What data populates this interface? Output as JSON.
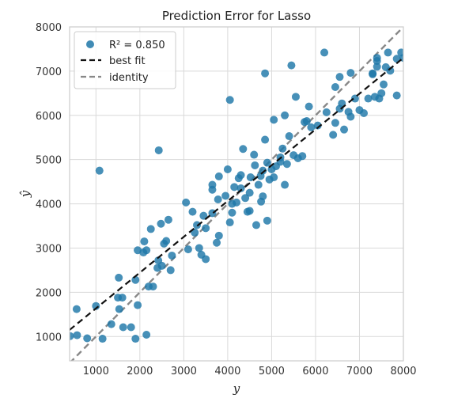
{
  "chart_data": {
    "type": "scatter",
    "title": "Prediction Error for Lasso",
    "xlabel": "y",
    "ylabel": "ŷ",
    "xlim": [
      400,
      8000
    ],
    "ylim": [
      450,
      8000
    ],
    "xticks": [
      "1000",
      "2000",
      "3000",
      "4000",
      "5000",
      "6000",
      "7000",
      "8000"
    ],
    "yticks": [
      "1000",
      "2000",
      "3000",
      "4000",
      "5000",
      "6000",
      "7000",
      "8000"
    ],
    "grid": true,
    "legend_position": "top-left",
    "legend": {
      "points_label": "R² = 0.850",
      "best_fit_label": "best fit",
      "identity_label": "identity"
    },
    "colors": {
      "points": "#1f77a8",
      "best_fit": "#111111",
      "identity": "#888888",
      "grid": "#d9d9d9"
    },
    "best_fit": {
      "x": [
        400,
        8000
      ],
      "y": [
        1150,
        7300
      ]
    },
    "identity": {
      "x": [
        400,
        8000
      ],
      "y": [
        400,
        8000
      ]
    },
    "points": [
      [
        410,
        1010
      ],
      [
        560,
        1620
      ],
      [
        570,
        1030
      ],
      [
        800,
        960
      ],
      [
        1000,
        1690
      ],
      [
        1080,
        4750
      ],
      [
        1150,
        950
      ],
      [
        1350,
        1280
      ],
      [
        1500,
        1880
      ],
      [
        1530,
        1620
      ],
      [
        1520,
        2330
      ],
      [
        1600,
        1880
      ],
      [
        1620,
        1210
      ],
      [
        1800,
        1210
      ],
      [
        1900,
        950
      ],
      [
        1900,
        2280
      ],
      [
        1950,
        1710
      ],
      [
        1950,
        2950
      ],
      [
        2080,
        2900
      ],
      [
        2100,
        3150
      ],
      [
        2150,
        2950
      ],
      [
        2150,
        1040
      ],
      [
        2200,
        2130
      ],
      [
        2250,
        3430
      ],
      [
        2300,
        2130
      ],
      [
        2400,
        2550
      ],
      [
        2430,
        5210
      ],
      [
        2420,
        2720
      ],
      [
        2480,
        3550
      ],
      [
        2500,
        2600
      ],
      [
        2550,
        3100
      ],
      [
        2600,
        3160
      ],
      [
        2650,
        3640
      ],
      [
        2700,
        2500
      ],
      [
        2730,
        2830
      ],
      [
        3050,
        4030
      ],
      [
        3100,
        2970
      ],
      [
        3200,
        3820
      ],
      [
        3250,
        3350
      ],
      [
        3300,
        3520
      ],
      [
        3350,
        3000
      ],
      [
        3400,
        2850
      ],
      [
        3450,
        3730
      ],
      [
        3500,
        3450
      ],
      [
        3500,
        2750
      ],
      [
        3650,
        4430
      ],
      [
        3650,
        4320
      ],
      [
        3650,
        3790
      ],
      [
        3750,
        3120
      ],
      [
        3780,
        4100
      ],
      [
        3800,
        4620
      ],
      [
        3800,
        3280
      ],
      [
        3950,
        4180
      ],
      [
        4000,
        4780
      ],
      [
        4050,
        3580
      ],
      [
        4050,
        6350
      ],
      [
        4100,
        3800
      ],
      [
        4100,
        4000
      ],
      [
        4150,
        4380
      ],
      [
        4200,
        4030
      ],
      [
        4250,
        4580
      ],
      [
        4300,
        4650
      ],
      [
        4300,
        4350
      ],
      [
        4350,
        5240
      ],
      [
        4400,
        4130
      ],
      [
        4450,
        3820
      ],
      [
        4500,
        3840
      ],
      [
        4500,
        4250
      ],
      [
        4520,
        4600
      ],
      [
        4600,
        5110
      ],
      [
        4620,
        4870
      ],
      [
        4650,
        3520
      ],
      [
        4700,
        4430
      ],
      [
        4750,
        4630
      ],
      [
        4760,
        4050
      ],
      [
        4800,
        4750
      ],
      [
        4800,
        4170
      ],
      [
        4850,
        6950
      ],
      [
        4850,
        5450
      ],
      [
        4900,
        4930
      ],
      [
        4900,
        3620
      ],
      [
        4950,
        4550
      ],
      [
        5000,
        4780
      ],
      [
        5050,
        4600
      ],
      [
        5050,
        5900
      ],
      [
        5100,
        4850
      ],
      [
        5200,
        5050
      ],
      [
        5200,
        4950
      ],
      [
        5250,
        5250
      ],
      [
        5300,
        6000
      ],
      [
        5300,
        4430
      ],
      [
        5350,
        4900
      ],
      [
        5400,
        5530
      ],
      [
        5450,
        7130
      ],
      [
        5500,
        5100
      ],
      [
        5550,
        6420
      ],
      [
        5600,
        5030
      ],
      [
        5700,
        5080
      ],
      [
        5750,
        5850
      ],
      [
        5800,
        5870
      ],
      [
        5850,
        6200
      ],
      [
        5900,
        5730
      ],
      [
        6050,
        5770
      ],
      [
        6200,
        7420
      ],
      [
        6250,
        6070
      ],
      [
        6400,
        5560
      ],
      [
        6450,
        5830
      ],
      [
        6450,
        6640
      ],
      [
        6550,
        6870
      ],
      [
        6550,
        6150
      ],
      [
        6600,
        6270
      ],
      [
        6650,
        5680
      ],
      [
        6750,
        6080
      ],
      [
        6800,
        5970
      ],
      [
        6800,
        6960
      ],
      [
        6900,
        6380
      ],
      [
        7000,
        6120
      ],
      [
        7100,
        6050
      ],
      [
        7200,
        6380
      ],
      [
        7300,
        6950
      ],
      [
        7300,
        6930
      ],
      [
        7350,
        6420
      ],
      [
        7400,
        7230
      ],
      [
        7400,
        7100
      ],
      [
        7400,
        7300
      ],
      [
        7450,
        6380
      ],
      [
        7500,
        6500
      ],
      [
        7550,
        6700
      ],
      [
        7650,
        7420
      ],
      [
        7600,
        7090
      ],
      [
        7700,
        7010
      ],
      [
        7850,
        6450
      ],
      [
        7850,
        7280
      ],
      [
        7950,
        7420
      ],
      [
        8000,
        7300
      ]
    ]
  }
}
